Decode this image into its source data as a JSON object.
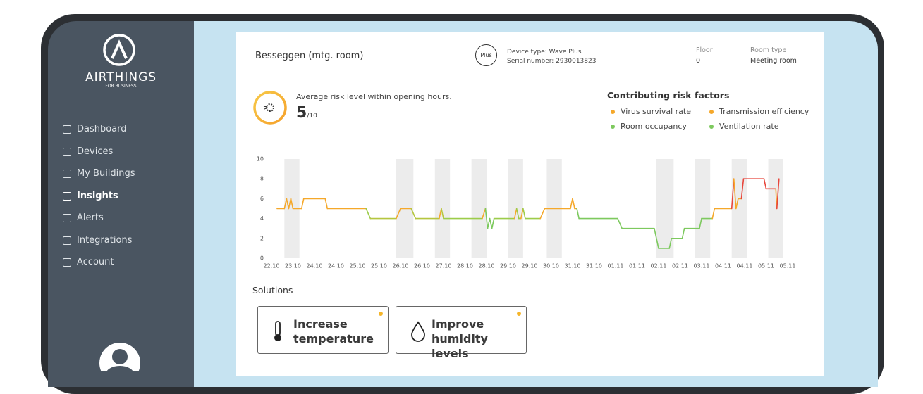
{
  "sidebar": {
    "logo": "AIRTHINGS",
    "logo_sub": "FOR BUSINESS",
    "menu": [
      {
        "label": "Dashboard",
        "active": false
      },
      {
        "label": "Devices",
        "active": false
      },
      {
        "label": "My Buildings",
        "active": false
      },
      {
        "label": "Insights",
        "active": true
      },
      {
        "label": "Alerts",
        "active": false
      },
      {
        "label": "Integrations",
        "active": false
      },
      {
        "label": "Account",
        "active": false
      }
    ]
  },
  "header": {
    "room": "Besseggen (mtg. room)",
    "badge": "Plus",
    "device_type": "Device type: Wave Plus",
    "serial": "Serial number: 2930013823",
    "floor_label": "Floor",
    "floor": "0",
    "room_type_label": "Room type",
    "room_type": "Meeting room"
  },
  "risk": {
    "caption": "Average risk level within opening hours.",
    "score": "5",
    "scale": "/10"
  },
  "factors": {
    "title": "Contributing risk factors",
    "items": [
      {
        "label": "Virus survival rate",
        "color": "#f5a82a"
      },
      {
        "label": "Transmission efficiency",
        "color": "#f5a82a"
      },
      {
        "label": "Room occupancy",
        "color": "#7dc95e"
      },
      {
        "label": "Ventilation rate",
        "color": "#7dc95e"
      }
    ]
  },
  "chart_data": {
    "type": "line",
    "xlim": [
      0,
      24
    ],
    "ylim": [
      0,
      10
    ],
    "yticks": [
      0,
      2,
      4,
      6,
      8,
      10
    ],
    "xticks": [
      {
        "value": 0,
        "label": "22.10"
      },
      {
        "value": 1,
        "label": "23.10"
      },
      {
        "value": 2,
        "label": "24.10"
      },
      {
        "value": 3,
        "label": "24.10"
      },
      {
        "value": 4,
        "label": "25.10"
      },
      {
        "value": 5,
        "label": "25.10"
      },
      {
        "value": 6,
        "label": "26.10"
      },
      {
        "value": 7,
        "label": "26.10"
      },
      {
        "value": 8,
        "label": "27.10"
      },
      {
        "value": 9,
        "label": "28.10"
      },
      {
        "value": 10,
        "label": "28.10"
      },
      {
        "value": 11,
        "label": "29.10"
      },
      {
        "value": 12,
        "label": "29.10"
      },
      {
        "value": 13,
        "label": "30.10"
      },
      {
        "value": 14,
        "label": "31.10"
      },
      {
        "value": 15,
        "label": "31.10"
      },
      {
        "value": 16,
        "label": "01.11"
      },
      {
        "value": 17,
        "label": "01.11"
      },
      {
        "value": 18,
        "label": "02.11"
      },
      {
        "value": 19,
        "label": "02.11"
      },
      {
        "value": 20,
        "label": "03.11"
      },
      {
        "value": 21,
        "label": "04.11"
      },
      {
        "value": 22,
        "label": "04.11"
      },
      {
        "value": 23,
        "label": "05.11"
      },
      {
        "value": 24,
        "label": "05.11"
      }
    ],
    "shaded_ranges": [
      [
        0.6,
        1.3
      ],
      [
        5.8,
        6.6
      ],
      [
        7.6,
        8.3
      ],
      [
        9.3,
        10.0
      ],
      [
        11.0,
        11.7
      ],
      [
        12.8,
        13.5
      ],
      [
        17.9,
        18.7
      ],
      [
        19.7,
        20.4
      ],
      [
        21.4,
        22.1
      ],
      [
        23.1,
        23.8
      ]
    ],
    "shade_color": "#ececec",
    "x": [
      0.26,
      0.6,
      0.7,
      0.8,
      0.9,
      1.0,
      1.4,
      1.5,
      2.5,
      2.6,
      4.4,
      4.6,
      5.8,
      6.0,
      6.5,
      6.7,
      7.8,
      7.9,
      8.0,
      9.8,
      9.95,
      10.05,
      10.15,
      10.25,
      10.35,
      11.3,
      11.4,
      11.5,
      11.6,
      11.7,
      11.8,
      12.5,
      12.7,
      13.9,
      14.0,
      14.1,
      14.2,
      14.3,
      16.1,
      16.3,
      17.8,
      18.0,
      18.5,
      18.6,
      19.1,
      19.2,
      19.9,
      20.0,
      20.5,
      20.6,
      21.4,
      21.5,
      21.6,
      21.7,
      21.85,
      21.95,
      22.9,
      23.0,
      23.45,
      23.5,
      23.6
    ],
    "values": [
      5,
      5,
      6,
      5,
      6,
      5,
      5,
      6,
      6,
      5,
      5,
      4,
      4,
      5,
      5,
      4,
      4,
      5,
      4,
      4,
      5,
      3,
      4,
      3,
      4,
      4,
      5,
      4,
      4,
      5,
      4,
      4,
      5,
      5,
      6,
      5,
      5,
      4,
      4,
      3,
      3,
      1,
      1,
      2,
      2,
      3,
      3,
      4,
      4,
      5,
      5,
      8,
      5,
      6,
      6,
      8,
      8,
      7,
      7,
      5,
      8
    ],
    "point_colors": [
      "#f5a82a",
      "#f5a82a",
      "#f5a82a",
      "#f5a82a",
      "#f5a82a",
      "#f5a82a",
      "#f5a82a",
      "#f5a82a",
      "#f5a82a",
      "#f5a82a",
      "#f5a82a",
      "#9ccc4a",
      "#b5c63f",
      "#f5a82a",
      "#f5a82a",
      "#b5c63f",
      "#b5c63f",
      "#f5a82a",
      "#b5c63f",
      "#9ccc4a",
      "#f5a82a",
      "#7dc95e",
      "#7dc95e",
      "#7dc95e",
      "#7dc95e",
      "#9ccc4a",
      "#f5a82a",
      "#9ccc4a",
      "#9ccc4a",
      "#f5a82a",
      "#9ccc4a",
      "#9ccc4a",
      "#f5a82a",
      "#f5a82a",
      "#f5a82a",
      "#f5a82a",
      "#f5a82a",
      "#7dc95e",
      "#7dc95e",
      "#7dc95e",
      "#7dc95e",
      "#7dc95e",
      "#7dc95e",
      "#7dc95e",
      "#7dc95e",
      "#7dc95e",
      "#7dc95e",
      "#7dc95e",
      "#7dc95e",
      "#f5a82a",
      "#f5a82a",
      "#e8463c",
      "#f5a82a",
      "#f5a82a",
      "#f5a82a",
      "#e8463c",
      "#e8463c",
      "#e8463c",
      "#e8463c",
      "#f5a82a",
      "#e8463c"
    ]
  },
  "solutions": {
    "title": "Solutions",
    "cards": [
      {
        "label": "Increase temperature"
      },
      {
        "label": "Improve humidity levels"
      }
    ]
  }
}
